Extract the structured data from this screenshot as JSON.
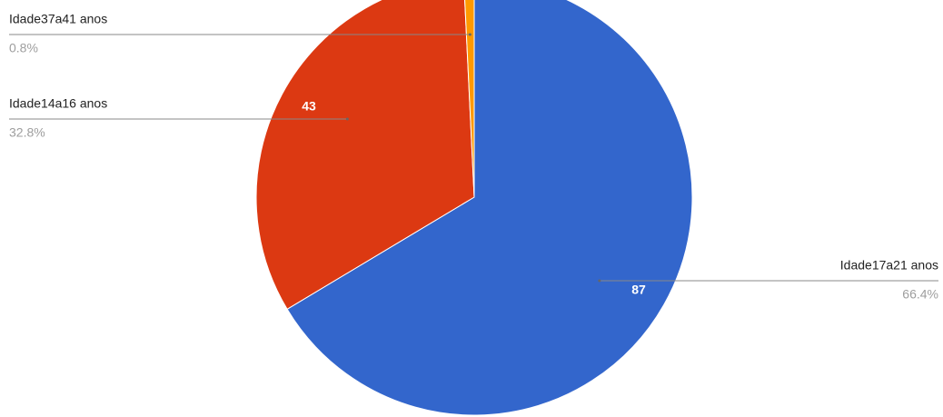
{
  "chart_data": {
    "type": "pie",
    "categories": [
      "Idade17a21 anos",
      "Idade14a16 anos",
      "Idade37a41 anos"
    ],
    "values": [
      87,
      43,
      1
    ],
    "colors": [
      "#3366cc",
      "#dc3912",
      "#ff9900"
    ],
    "percents": [
      66.4,
      32.8,
      0.8
    ],
    "percent_labels": [
      "66.4%",
      "32.8%",
      "0.8%"
    ],
    "start_angle": 0,
    "direction": "clockwise"
  }
}
